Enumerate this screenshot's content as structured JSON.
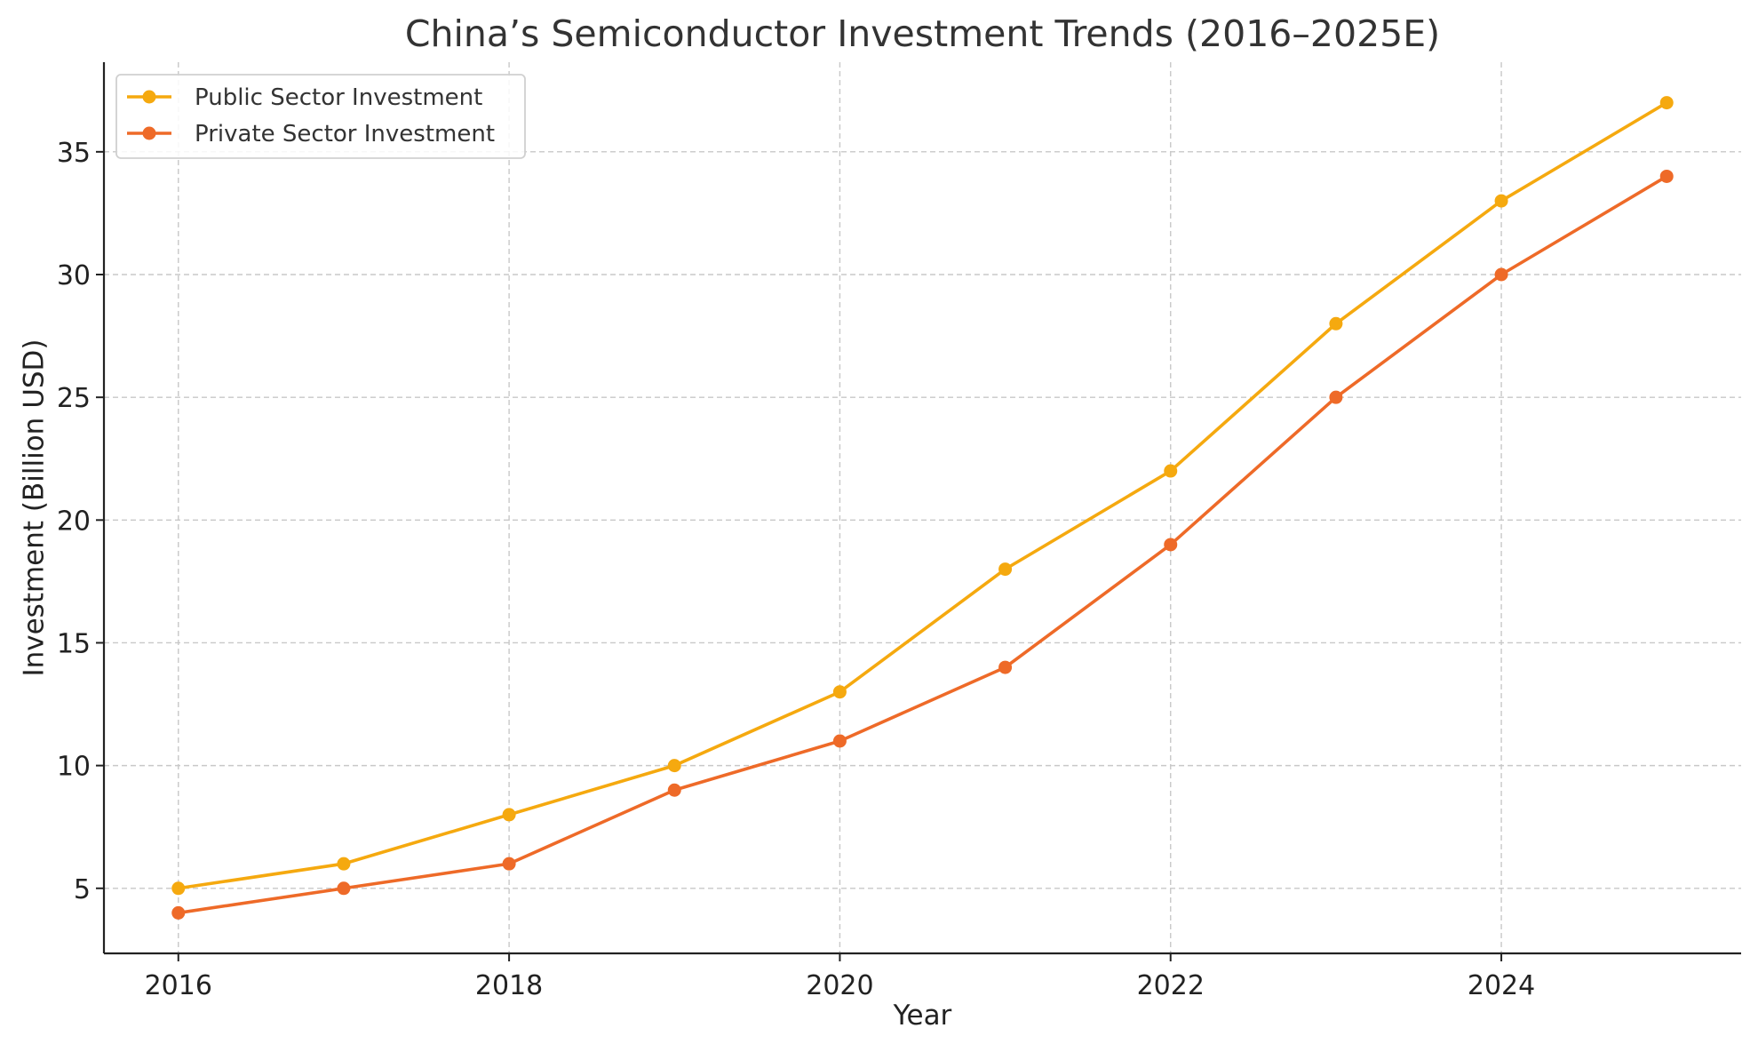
{
  "chart_data": {
    "type": "line",
    "title": "China’s Semiconductor Investment Trends (2016–2025E)",
    "xlabel": "Year",
    "ylabel": "Investment (Billion USD)",
    "x": [
      2016,
      2017,
      2018,
      2019,
      2020,
      2021,
      2022,
      2023,
      2024,
      2025
    ],
    "xticks": [
      2016,
      2018,
      2020,
      2022,
      2024
    ],
    "yticks": [
      5,
      10,
      15,
      20,
      25,
      30,
      35
    ],
    "xlim": [
      2015.55,
      2025.45
    ],
    "ylim": [
      2.35,
      38.65
    ],
    "grid": true,
    "legend_position": "top-left",
    "series": [
      {
        "name": "Public Sector Investment",
        "color": "#F5A90F",
        "values": [
          5,
          6,
          8,
          10,
          13,
          18,
          22,
          28,
          33,
          37
        ]
      },
      {
        "name": "Private Sector Investment",
        "color": "#EE6A28",
        "values": [
          4,
          5,
          6,
          9,
          11,
          14,
          19,
          25,
          30,
          34
        ]
      }
    ]
  }
}
